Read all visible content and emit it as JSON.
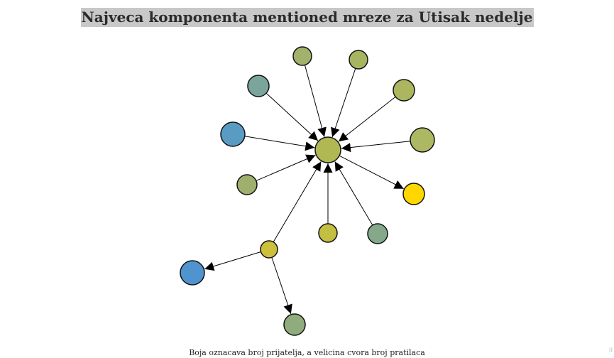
{
  "header": {
    "title": "Najveca komponenta mentioned mreze za Utisak nedelje"
  },
  "footer": {
    "caption": "Boja oznacava broj prijatelja, a velicina cvora broj pratilaca"
  },
  "graph": {
    "nodes": [
      {
        "id": "center",
        "color": "#b0b854"
      },
      {
        "id": "n1",
        "color": "#a2b26c"
      },
      {
        "id": "n2",
        "color": "#a8b560"
      },
      {
        "id": "n3",
        "color": "#7ba59c"
      },
      {
        "id": "n4",
        "color": "#abb65e"
      },
      {
        "id": "n5",
        "color": "#5a9bc4"
      },
      {
        "id": "n6",
        "color": "#adb862"
      },
      {
        "id": "n7",
        "color": "#9fb06e"
      },
      {
        "id": "n8",
        "color": "#ffd700"
      },
      {
        "id": "n9",
        "color": "#c2bf42"
      },
      {
        "id": "n10",
        "color": "#86a88a"
      },
      {
        "id": "hub",
        "color": "#cdc03a"
      },
      {
        "id": "n12",
        "color": "#4f93cf"
      },
      {
        "id": "n13",
        "color": "#90ac7c"
      }
    ],
    "edges": [
      {
        "source": "n1",
        "target": "center"
      },
      {
        "source": "n2",
        "target": "center"
      },
      {
        "source": "n3",
        "target": "center"
      },
      {
        "source": "n4",
        "target": "center"
      },
      {
        "source": "n5",
        "target": "center"
      },
      {
        "source": "n6",
        "target": "center"
      },
      {
        "source": "n7",
        "target": "center"
      },
      {
        "source": "center",
        "target": "n8"
      },
      {
        "source": "n9",
        "target": "center"
      },
      {
        "source": "n10",
        "target": "center"
      },
      {
        "source": "hub",
        "target": "center"
      },
      {
        "source": "hub",
        "target": "n12"
      },
      {
        "source": "hub",
        "target": "n13"
      }
    ]
  }
}
